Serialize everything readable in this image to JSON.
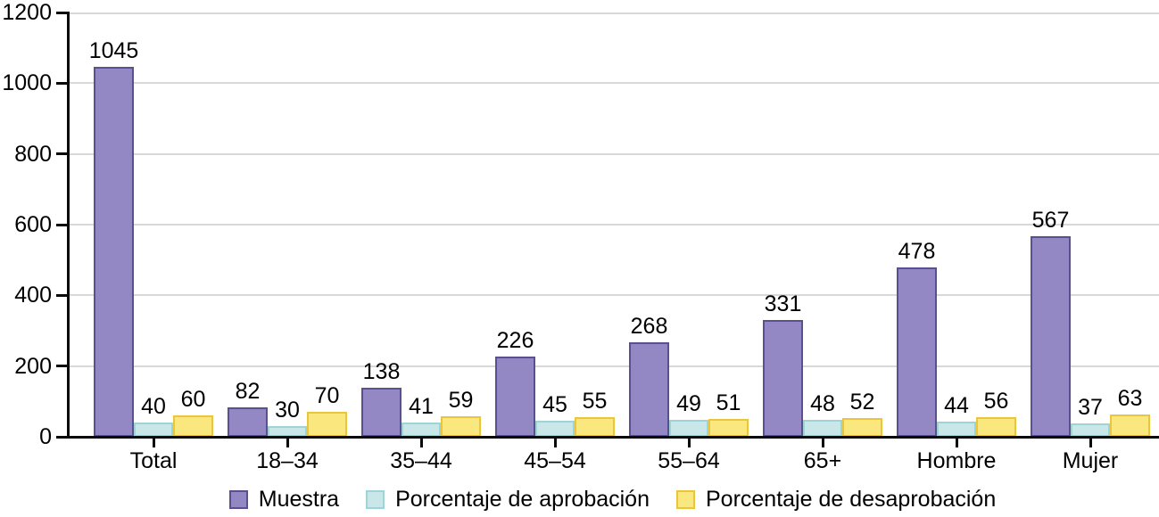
{
  "chart_data": {
    "type": "bar",
    "title": "",
    "xlabel": "",
    "ylabel": "",
    "categories": [
      "Total",
      "18–34",
      "35–44",
      "45–54",
      "55–64",
      "65+",
      "Hombre",
      "Mujer"
    ],
    "series": [
      {
        "name": "Muestra",
        "fill": "#9488c4",
        "border": "#5a4f91",
        "values": [
          1045,
          82,
          138,
          226,
          268,
          331,
          478,
          567
        ]
      },
      {
        "name": "Porcentaje de aprobación",
        "fill": "#c9e6e8",
        "border": "#9ed4d6",
        "values": [
          40,
          30,
          41,
          45,
          49,
          48,
          44,
          37
        ]
      },
      {
        "name": "Porcentaje de desaprobación",
        "fill": "#fae77d",
        "border": "#e9c63d",
        "values": [
          60,
          70,
          59,
          55,
          51,
          52,
          56,
          63
        ]
      }
    ],
    "y_ticks": [
      0,
      200,
      400,
      600,
      800,
      1000,
      1200
    ],
    "ylim": [
      0,
      1200
    ],
    "grid": true,
    "value_labels": true,
    "legend_position": "bottom"
  },
  "colors": {
    "background": "#ffffff",
    "axis": "#0a0a0a",
    "gridline": "#d8d8d8",
    "text": "#000000"
  }
}
